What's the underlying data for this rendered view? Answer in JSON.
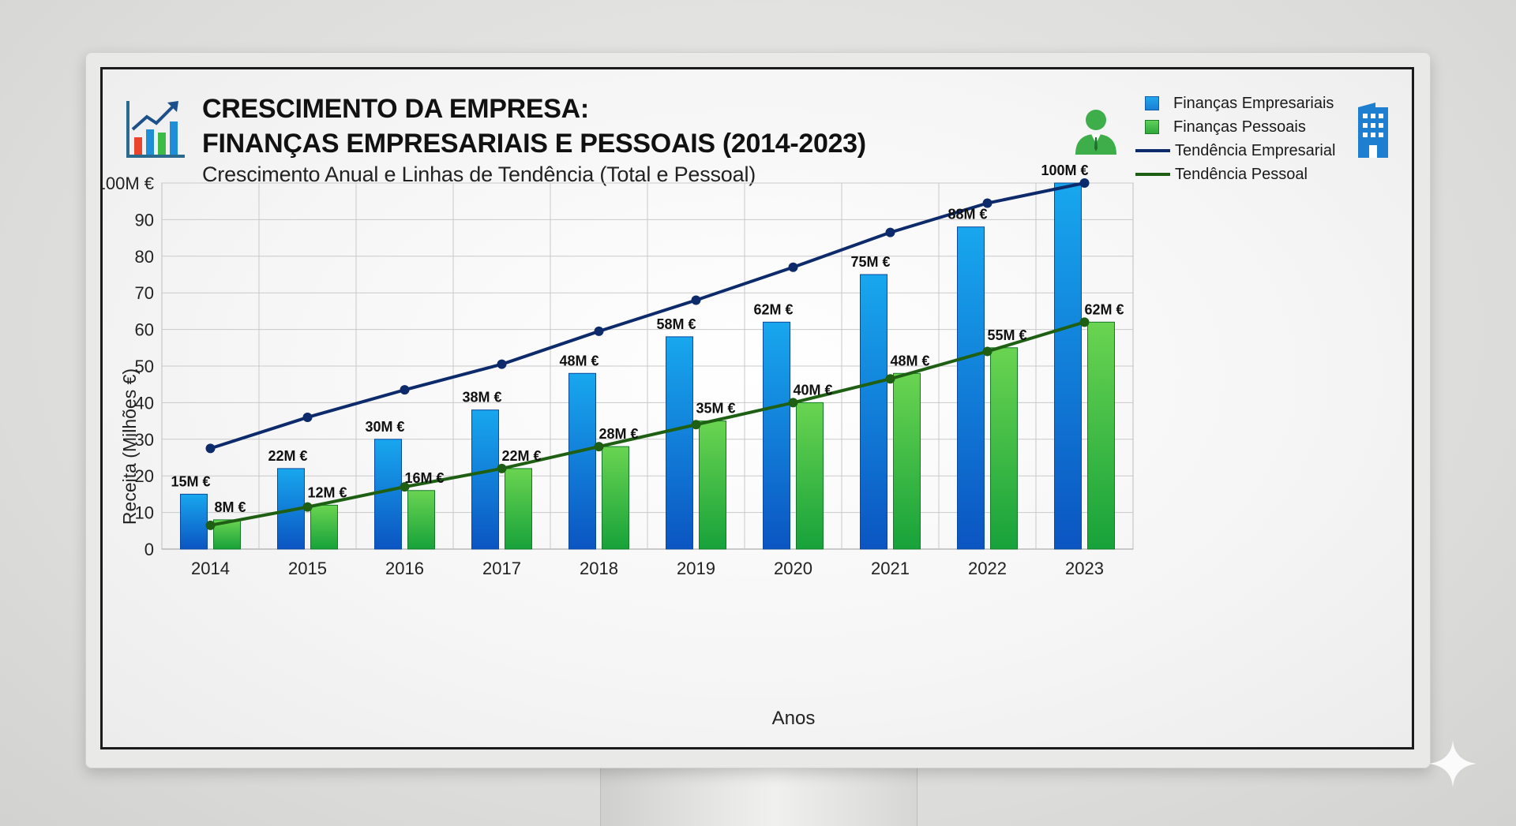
{
  "header": {
    "title_line1": "CRESCIMENTO DA EMPRESA:",
    "title_line2": "FINANÇAS EMPRESARIAIS E PESSOAIS (2014-2023)",
    "subtitle": "Crescimento Anual e Linhas de Tendência (Total e Pessoal)"
  },
  "icons": {
    "logo": "bar-chart-growth-icon",
    "person": "businessman-icon",
    "building": "office-building-icon",
    "corner": "sparkle-star-icon"
  },
  "legend": {
    "items": [
      {
        "label": "Finanças Empresariais",
        "kind": "bar"
      },
      {
        "label": "Finanças Pessoais",
        "kind": "bar"
      },
      {
        "label": "Tendência Empresarial",
        "kind": "line"
      },
      {
        "label": "Tendência Pessoal",
        "kind": "line"
      }
    ]
  },
  "colors": {
    "empresarial_bar": "#1a8fe3",
    "pessoal_bar": "#3dbb46",
    "tendencia_empresarial": "#0d2a6b",
    "tendencia_pessoal": "#1e5f14"
  },
  "chart_data": {
    "type": "bar",
    "categories": [
      "2014",
      "2015",
      "2016",
      "2017",
      "2018",
      "2019",
      "2020",
      "2021",
      "2022",
      "2023"
    ],
    "series": [
      {
        "name": "Finanças Empresariais",
        "type": "bar",
        "values": [
          15,
          22,
          30,
          38,
          48,
          58,
          62,
          75,
          88,
          100
        ],
        "labels": [
          "15M €",
          "22M €",
          "30M €",
          "38M €",
          "48M €",
          "58M €",
          "62M €",
          "75M €",
          "88M €",
          "100M €"
        ]
      },
      {
        "name": "Finanças Pessoais",
        "type": "bar",
        "values": [
          8,
          12,
          16,
          22,
          28,
          35,
          40,
          48,
          55,
          62
        ],
        "labels": [
          "8M €",
          "12M €",
          "16M €",
          "22M €",
          "28M €",
          "35M €",
          "40M €",
          "48M €",
          "55M €",
          "62M €"
        ]
      },
      {
        "name": "Tendência Empresarial",
        "type": "line",
        "values": [
          27.5,
          36,
          43.5,
          50.5,
          59.5,
          68,
          77,
          86.5,
          94.5,
          100
        ]
      },
      {
        "name": "Tendência Pessoal",
        "type": "line",
        "values": [
          6.5,
          11.5,
          17,
          22,
          28,
          34,
          40,
          46.5,
          54,
          62
        ]
      }
    ],
    "ylabel": "Receita (Milhões €)",
    "xlabel": "Anos",
    "ylim": [
      0,
      100
    ],
    "yticks": [
      0,
      10,
      20,
      30,
      40,
      50,
      60,
      70,
      80,
      90,
      100
    ],
    "ytick_labels": [
      "0",
      "10",
      "20",
      "30",
      "40",
      "50",
      "60",
      "70",
      "80",
      "90",
      "100M €"
    ],
    "grid": true,
    "legend_position": "top-right"
  }
}
